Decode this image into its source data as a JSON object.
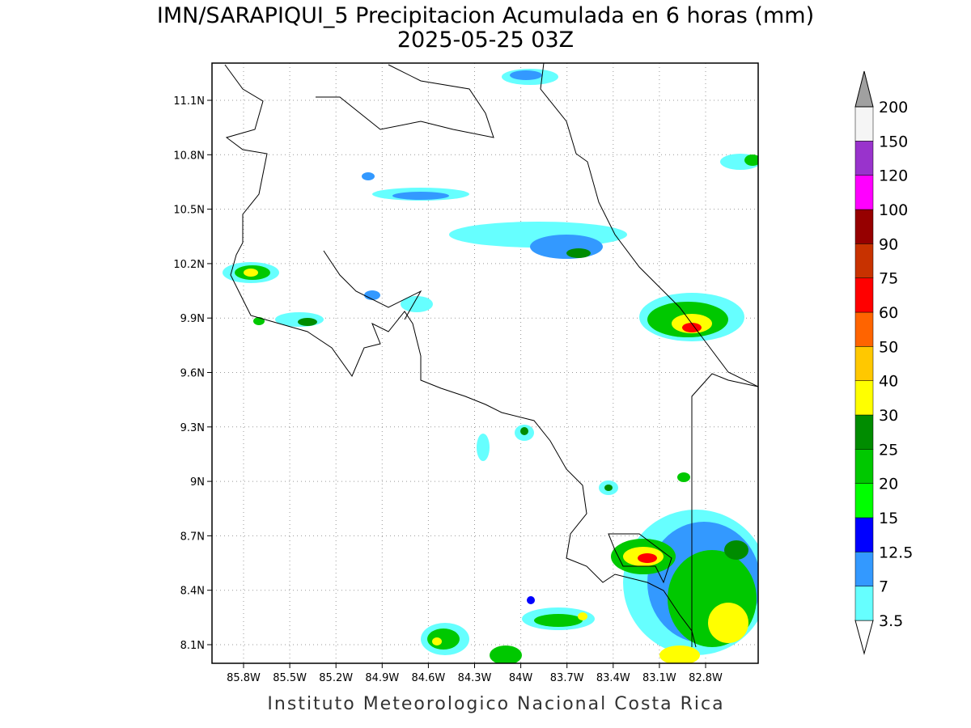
{
  "title": "IMN/SARAPIQUI_5 Precipitacion Acumulada en 6 horas (mm)",
  "subtitle": "2025-05-25 03Z",
  "footer": "Instituto Meteorologico Nacional Costa Rica",
  "map": {
    "lon_ticks": [
      {
        "value": -85.8,
        "label": "85.8W"
      },
      {
        "value": -85.5,
        "label": "85.5W"
      },
      {
        "value": -85.2,
        "label": "85.2W"
      },
      {
        "value": -84.9,
        "label": "84.9W"
      },
      {
        "value": -84.6,
        "label": "84.6W"
      },
      {
        "value": -84.3,
        "label": "84.3W"
      },
      {
        "value": -84,
        "label": "84W"
      },
      {
        "value": -83.7,
        "label": "83.7W"
      },
      {
        "value": -83.4,
        "label": "83.4W"
      },
      {
        "value": -83.1,
        "label": "83.1W"
      },
      {
        "value": -82.8,
        "label": "82.8W"
      }
    ],
    "lat_ticks": [
      {
        "value": 8.1,
        "label": "8.1N"
      },
      {
        "value": 8.4,
        "label": "8.4N"
      },
      {
        "value": 8.7,
        "label": "8.7N"
      },
      {
        "value": 9,
        "label": "9N"
      },
      {
        "value": 9.3,
        "label": "9.3N"
      },
      {
        "value": 9.6,
        "label": "9.6N"
      },
      {
        "value": 9.9,
        "label": "9.9N"
      },
      {
        "value": 10.2,
        "label": "10.2N"
      },
      {
        "value": 10.5,
        "label": "10.5N"
      },
      {
        "value": 10.8,
        "label": "10.8N"
      },
      {
        "value": 11.1,
        "label": "11.1N"
      }
    ],
    "legend": {
      "levels": [
        3.5,
        7,
        12.5,
        15,
        20,
        25,
        30,
        40,
        50,
        60,
        75,
        90,
        100,
        120,
        150,
        200
      ],
      "colors": [
        "#ffffff",
        "#66ffff",
        "#3399ff",
        "#0000ff",
        "#00ff00",
        "#00c800",
        "#008c00",
        "#ffff00",
        "#ffc800",
        "#ff6400",
        "#ff0000",
        "#c83200",
        "#960000",
        "#ff00ff",
        "#9933cc",
        "#f5f5f5",
        "#a0a0a0"
      ]
    }
  }
}
